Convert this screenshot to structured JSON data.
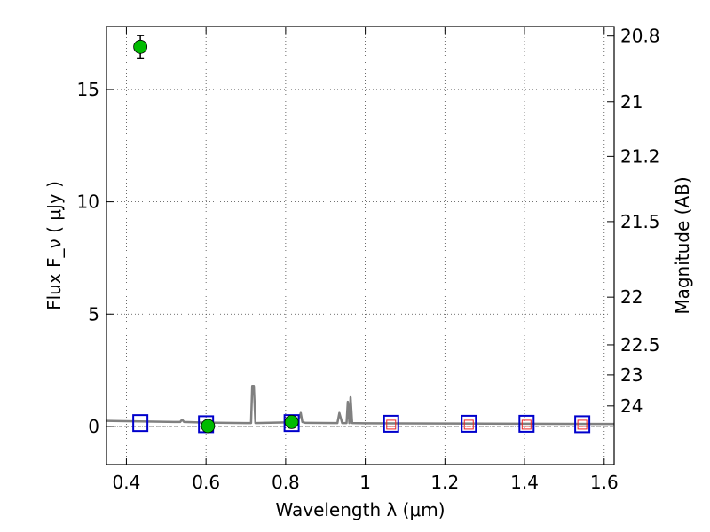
{
  "chart_data": {
    "type": "scatter",
    "xlabel": "Wavelength  λ (μm)",
    "ylabel": "Flux  F_ν  ( μJy )",
    "ylabel_right": "Magnitude (AB)",
    "xlim": [
      0.35,
      1.625
    ],
    "ylim": [
      -1.7,
      17.8
    ],
    "grid": true,
    "x_ticks": [
      0.4,
      0.6,
      0.8,
      1.0,
      1.2,
      1.4,
      1.6
    ],
    "x_tick_labels": [
      "0.4",
      "0.6",
      "0.8",
      "1",
      "1.2",
      "1.4",
      "1.6"
    ],
    "y_ticks": [
      0,
      5,
      10,
      15
    ],
    "y_tick_labels": [
      "0",
      "5",
      "10",
      "15"
    ],
    "mag_ticks": [
      20.8,
      21,
      21.2,
      21.5,
      22,
      22.5,
      23,
      24
    ],
    "mag_tick_labels": [
      "20.8",
      "21",
      "21.2",
      "21.5",
      "22",
      "22.5",
      "23",
      "24"
    ],
    "observed_points": [
      {
        "x": 0.435,
        "y": 16.9,
        "yerr": 0.5
      },
      {
        "x": 0.605,
        "y": 0.02,
        "yerr": 0.1
      },
      {
        "x": 0.815,
        "y": 0.2,
        "yerr": 0.1
      }
    ],
    "model_boxes": [
      {
        "x": 0.435,
        "y": 0.15
      },
      {
        "x": 0.6,
        "y": 0.1
      },
      {
        "x": 0.815,
        "y": 0.15
      },
      {
        "x": 1.065,
        "y": 0.12
      },
      {
        "x": 1.26,
        "y": 0.12
      },
      {
        "x": 1.405,
        "y": 0.12
      },
      {
        "x": 1.545,
        "y": 0.1
      }
    ],
    "upper_limits": [
      {
        "x": 1.065,
        "y": 0.08
      },
      {
        "x": 1.26,
        "y": 0.08
      },
      {
        "x": 1.405,
        "y": 0.08
      },
      {
        "x": 1.545,
        "y": 0.08
      }
    ],
    "sed_model": [
      [
        0.35,
        0.25
      ],
      [
        0.45,
        0.22
      ],
      [
        0.52,
        0.2
      ],
      [
        0.535,
        0.2
      ],
      [
        0.54,
        0.3
      ],
      [
        0.545,
        0.2
      ],
      [
        0.6,
        0.17
      ],
      [
        0.7,
        0.15
      ],
      [
        0.713,
        0.15
      ],
      [
        0.716,
        1.8
      ],
      [
        0.72,
        1.8
      ],
      [
        0.724,
        0.15
      ],
      [
        0.8,
        0.18
      ],
      [
        0.83,
        0.2
      ],
      [
        0.838,
        0.6
      ],
      [
        0.842,
        0.2
      ],
      [
        0.85,
        0.16
      ],
      [
        0.93,
        0.15
      ],
      [
        0.935,
        0.6
      ],
      [
        0.942,
        0.15
      ],
      [
        0.953,
        0.15
      ],
      [
        0.956,
        1.1
      ],
      [
        0.96,
        0.15
      ],
      [
        0.963,
        1.3
      ],
      [
        0.967,
        0.15
      ],
      [
        1.0,
        0.14
      ],
      [
        1.2,
        0.13
      ],
      [
        1.4,
        0.12
      ],
      [
        1.625,
        0.11
      ]
    ],
    "colors": {
      "observed": "#00bb00",
      "model_box": "#0000cc",
      "upper_limit": "#ee2222",
      "sed_line": "#808080",
      "grid": "#444444"
    }
  }
}
